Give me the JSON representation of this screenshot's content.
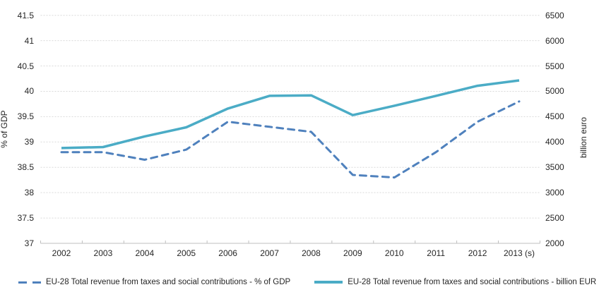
{
  "chart_data": {
    "type": "line",
    "categories": [
      "2002",
      "2003",
      "2004",
      "2005",
      "2006",
      "2007",
      "2008",
      "2009",
      "2010",
      "2011",
      "2012",
      "2013 (s)"
    ],
    "series": [
      {
        "name": "EU-28 Total revenue from taxes and social contributions - % of GDP",
        "axis": "left",
        "style": "dashed",
        "color": "#4F81BD",
        "values": [
          38.8,
          38.8,
          38.65,
          38.85,
          39.4,
          39.3,
          39.2,
          38.35,
          38.3,
          38.8,
          39.4,
          39.8
        ]
      },
      {
        "name": "EU-28 Total revenue from taxes and social contributions - billion EUR",
        "axis": "right",
        "style": "solid",
        "color": "#4BACC6",
        "values": [
          3880,
          3900,
          4110,
          4290,
          4660,
          4910,
          4920,
          4530,
          4715,
          4910,
          5110,
          5215
        ]
      }
    ],
    "left_axis": {
      "label": "% of GDP",
      "min": 37,
      "max": 41.5,
      "step": 0.5,
      "ticks": [
        "41.5",
        "41",
        "40.5",
        "40",
        "39.5",
        "39",
        "38.5",
        "38",
        "37.5",
        "37"
      ]
    },
    "right_axis": {
      "label": "billion euro",
      "min": 2000,
      "max": 6500,
      "step": 500,
      "ticks": [
        "6500",
        "6000",
        "5500",
        "5000",
        "4500",
        "4000",
        "3500",
        "3000",
        "2500",
        "2000"
      ]
    },
    "grid": true,
    "legend_position": "bottom",
    "colors": {
      "gridline": "#D9D9D9",
      "axis_line": "#BFBFBF",
      "text": "#262626"
    }
  }
}
